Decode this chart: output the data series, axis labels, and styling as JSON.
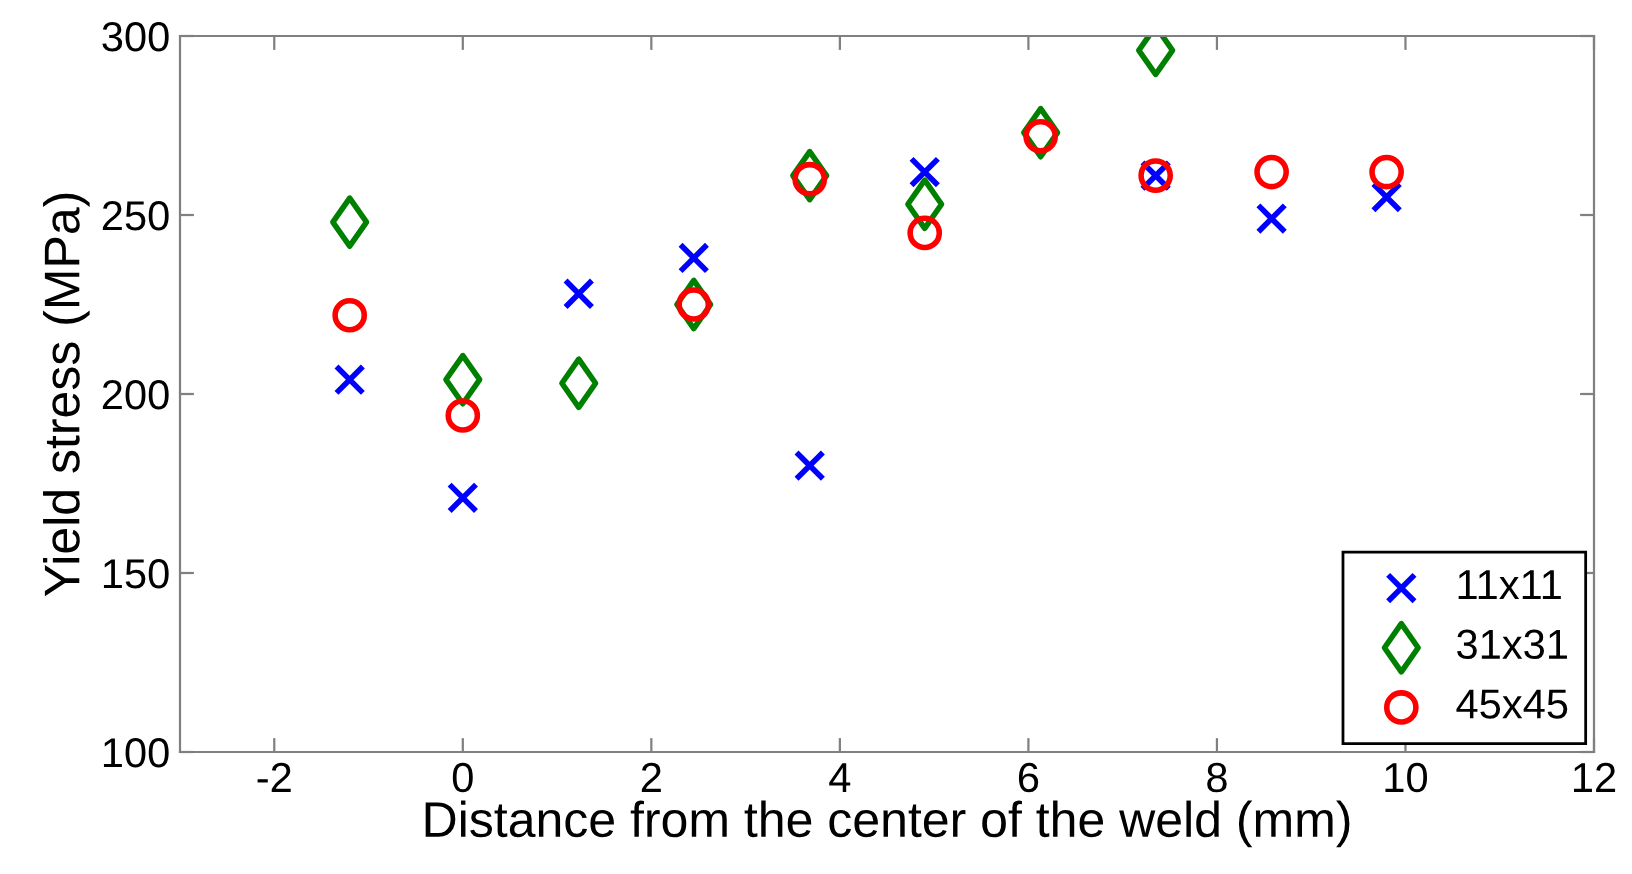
{
  "chart_data": {
    "type": "scatter",
    "xlabel": "Distance from the center of the weld (mm)",
    "ylabel": "Yield stress (MPa)",
    "x": [
      -1.2,
      0,
      1.23,
      2.45,
      3.68,
      4.9,
      6.13,
      7.35,
      8.58,
      9.8
    ],
    "series": [
      {
        "name": "11x11",
        "color": "#0000ff",
        "marker": "cross",
        "values": [
          204,
          171,
          228,
          238,
          180,
          262,
          null,
          261,
          249,
          255
        ]
      },
      {
        "name": "31x31",
        "color": "#008000",
        "marker": "diamond",
        "values": [
          248,
          204,
          203,
          225,
          261,
          253,
          273,
          296,
          null,
          null
        ]
      },
      {
        "name": "45x45",
        "color": "#ff0000",
        "marker": "circle",
        "values": [
          222,
          194,
          null,
          225,
          260,
          245,
          272,
          261,
          262,
          262
        ]
      }
    ],
    "xlim": [
      -3,
      12
    ],
    "xticks": [
      -2,
      0,
      2,
      4,
      6,
      8,
      10,
      12
    ],
    "ylim": [
      100,
      300
    ],
    "yticks": [
      100,
      150,
      200,
      250,
      300
    ],
    "grid": false,
    "legend": "bottom right"
  }
}
